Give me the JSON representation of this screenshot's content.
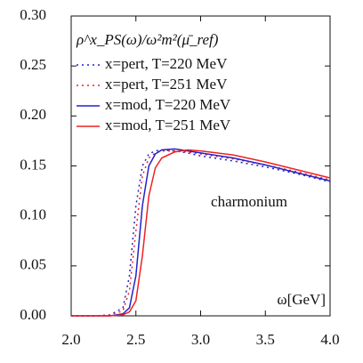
{
  "chart_data": {
    "type": "line",
    "title": "ρ^x_PS(ω)/ω²m²(μ̄_ref)",
    "xlabel": "ω[GeV]",
    "annotation": "charmonium",
    "x": [
      2.0,
      2.2,
      2.3,
      2.4,
      2.45,
      2.5,
      2.55,
      2.6,
      2.65,
      2.7,
      2.8,
      2.9,
      3.0,
      3.25,
      3.5,
      3.75,
      4.0
    ],
    "series": [
      {
        "name": "x=pert, T=220 MeV",
        "color": "#2222cc",
        "dash": "dotted",
        "values": [
          0,
          0,
          0.001,
          0.008,
          0.04,
          0.11,
          0.15,
          0.162,
          0.165,
          0.166,
          0.165,
          0.163,
          0.16,
          0.155,
          0.149,
          0.142,
          0.134
        ]
      },
      {
        "name": "x=pert, T=251 MeV",
        "color": "#ee2222",
        "dash": "dotted",
        "values": [
          0,
          0,
          0.001,
          0.005,
          0.025,
          0.085,
          0.14,
          0.158,
          0.163,
          0.165,
          0.165,
          0.164,
          0.162,
          0.157,
          0.151,
          0.144,
          0.136
        ]
      },
      {
        "name": "x=mod, T=220 MeV",
        "color": "#2222cc",
        "dash": "solid",
        "values": [
          0,
          0,
          0,
          0.002,
          0.008,
          0.04,
          0.11,
          0.15,
          0.162,
          0.166,
          0.167,
          0.165,
          0.163,
          0.158,
          0.151,
          0.143,
          0.135
        ]
      },
      {
        "name": "x=mod, T=251 MeV",
        "color": "#ee2222",
        "dash": "solid",
        "values": [
          0,
          0,
          0,
          0.001,
          0.004,
          0.015,
          0.06,
          0.12,
          0.148,
          0.158,
          0.164,
          0.166,
          0.165,
          0.161,
          0.154,
          0.146,
          0.138
        ]
      }
    ],
    "xlim": [
      2.0,
      4.0
    ],
    "xticks": [
      {
        "value": 2,
        "label": "2.0"
      },
      2.5,
      {
        "value": 3,
        "label": "3.0"
      },
      3.5,
      {
        "value": 4,
        "label": "4.0"
      }
    ],
    "ylim": [
      0,
      0.3
    ],
    "yticks": [
      {
        "value": 0,
        "label": "0.00"
      },
      {
        "value": 0.05,
        "label": "0.05"
      },
      {
        "value": 0.1,
        "label": "0.10"
      },
      {
        "value": 0.15,
        "label": "0.15"
      },
      {
        "value": 0.2,
        "label": "0.20"
      },
      {
        "value": 0.25,
        "label": "0.25"
      },
      {
        "value": 0.3,
        "label": "0.30"
      }
    ],
    "legend": "upper left"
  }
}
